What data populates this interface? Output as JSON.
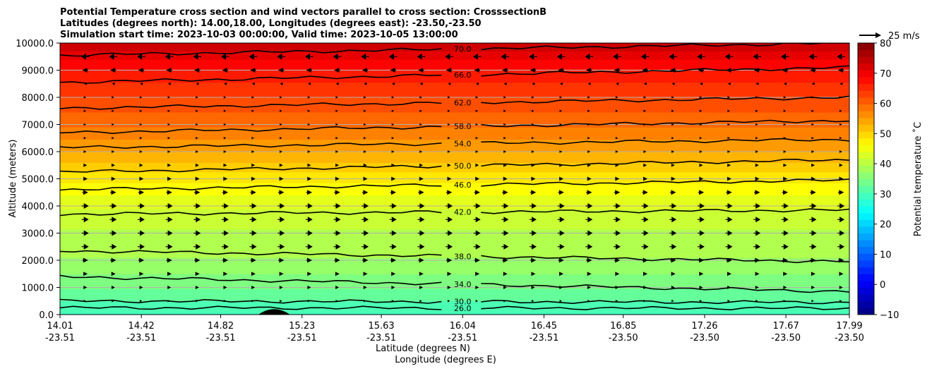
{
  "chart_data": {
    "type": "contourf",
    "title_lines": [
      "Potential Temperature cross section and wind vectors parallel to cross section: CrosssectionB",
      "Latitudes (degrees north): 14.00,18.00, Longitudes (degrees east): -23.50,-23.50",
      "Simulation start time: 2023-10-03 00:00:00, Valid time: 2023-10-05 13:00:00"
    ],
    "xlabel_lat": "Latitude (degrees N)",
    "xlabel_lon": "Longitude (degrees E)",
    "ylabel": "Altitude (meters)",
    "ylim": [
      0,
      10000
    ],
    "y_ticks": [
      {
        "value": 0,
        "label": "0.0"
      },
      {
        "value": 1000,
        "label": "1000.0"
      },
      {
        "value": 2000,
        "label": "2000.0"
      },
      {
        "value": 3000,
        "label": "3000.0"
      },
      {
        "value": 4000,
        "label": "4000.0"
      },
      {
        "value": 5000,
        "label": "5000.0"
      },
      {
        "value": 6000,
        "label": "6000.0"
      },
      {
        "value": 7000,
        "label": "7000.0"
      },
      {
        "value": 8000,
        "label": "8000.0"
      },
      {
        "value": 9000,
        "label": "9000.0"
      },
      {
        "value": 10000,
        "label": "10000.0"
      }
    ],
    "xlim": [
      14.01,
      17.99
    ],
    "x_ticks": [
      {
        "lat": 14.01,
        "lat_label": "14.01",
        "lon_label": "-23.51"
      },
      {
        "lat": 14.42,
        "lat_label": "14.42",
        "lon_label": "-23.51"
      },
      {
        "lat": 14.82,
        "lat_label": "14.82",
        "lon_label": "-23.51"
      },
      {
        "lat": 15.23,
        "lat_label": "15.23",
        "lon_label": "-23.51"
      },
      {
        "lat": 15.63,
        "lat_label": "15.63",
        "lon_label": "-23.51"
      },
      {
        "lat": 16.04,
        "lat_label": "16.04",
        "lon_label": "-23.51"
      },
      {
        "lat": 16.45,
        "lat_label": "16.45",
        "lon_label": "-23.51"
      },
      {
        "lat": 16.85,
        "lat_label": "16.85",
        "lon_label": "-23.50"
      },
      {
        "lat": 17.26,
        "lat_label": "17.26",
        "lon_label": "-23.50"
      },
      {
        "lat": 17.67,
        "lat_label": "17.67",
        "lon_label": "-23.50"
      },
      {
        "lat": 17.99,
        "lat_label": "17.99",
        "lon_label": "-23.50"
      }
    ],
    "grid": "horizontal",
    "colorbar": {
      "label": "Potential temperature $^\\circ$C",
      "label_display": "Potential temperature ˚C",
      "min": -10,
      "max": 80,
      "ticks": [
        -10,
        0,
        10,
        20,
        30,
        40,
        50,
        60,
        70,
        80
      ],
      "tick_labels": [
        "−10",
        "0",
        "10",
        "20",
        "30",
        "40",
        "50",
        "60",
        "70",
        "80"
      ],
      "colormap": "jet",
      "placement": "right"
    },
    "field_profile": [
      {
        "altitude": 0,
        "theta": 29
      },
      {
        "altitude": 1000,
        "theta": 34
      },
      {
        "altitude": 2000,
        "theta": 38
      },
      {
        "altitude": 3000,
        "theta": 40
      },
      {
        "altitude": 4000,
        "theta": 43
      },
      {
        "altitude": 5000,
        "theta": 48
      },
      {
        "altitude": 6000,
        "theta": 54
      },
      {
        "altitude": 7000,
        "theta": 59
      },
      {
        "altitude": 8000,
        "theta": 63
      },
      {
        "altitude": 9000,
        "theta": 67
      },
      {
        "altitude": 10000,
        "theta": 74
      }
    ],
    "contours": [
      {
        "level": 26,
        "label": "26.0",
        "altitude_left": 250,
        "altitude_right": 230,
        "label_lat": 16.04
      },
      {
        "level": 30,
        "label": "30.0",
        "altitude_left": 500,
        "altitude_right": 450,
        "label_lat": 16.04
      },
      {
        "level": 34,
        "label": "34.0",
        "altitude_left": 1400,
        "altitude_right": 850,
        "label_lat": 16.04
      },
      {
        "level": 38,
        "label": "38.0",
        "altitude_left": 2350,
        "altitude_right": 1950,
        "label_lat": 16.04
      },
      {
        "level": 42,
        "label": "42.0",
        "altitude_left": 3700,
        "altitude_right": 3850,
        "label_lat": 16.04
      },
      {
        "level": 46,
        "label": "46.0",
        "altitude_left": 4600,
        "altitude_right": 4950,
        "label_lat": 16.04
      },
      {
        "level": 50,
        "label": "50.0",
        "altitude_left": 5250,
        "altitude_right": 5700,
        "label_lat": 16.04
      },
      {
        "level": 54,
        "label": "54.0",
        "altitude_left": 6150,
        "altitude_right": 6450,
        "label_lat": 16.04
      },
      {
        "level": 58,
        "label": "58.0",
        "altitude_left": 6700,
        "altitude_right": 7150,
        "label_lat": 16.04
      },
      {
        "level": 62,
        "label": "62.0",
        "altitude_left": 7600,
        "altitude_right": 8000,
        "label_lat": 16.04
      },
      {
        "level": 66,
        "label": "66.0",
        "altitude_left": 8550,
        "altitude_right": 9100,
        "label_lat": 16.04
      },
      {
        "level": 70,
        "label": "70.0",
        "altitude_left": 9550,
        "altitude_right": 10000,
        "label_lat": 16.04
      }
    ],
    "terrain": {
      "lat_start": 15.01,
      "lat_peak": 15.09,
      "lat_end": 15.17,
      "peak_altitude": 200
    },
    "wind_vector_levels": [
      {
        "altitude": 500,
        "u": 0.5
      },
      {
        "altitude": 1000,
        "u": 2
      },
      {
        "altitude": 1500,
        "u": 3
      },
      {
        "altitude": 2000,
        "u": 4
      },
      {
        "altitude": 2500,
        "u": 5
      },
      {
        "altitude": 3000,
        "u": 5
      },
      {
        "altitude": 3500,
        "u": 5
      },
      {
        "altitude": 4000,
        "u": 5
      },
      {
        "altitude": 4500,
        "u": 4
      },
      {
        "altitude": 5000,
        "u": 3
      },
      {
        "altitude": 5500,
        "u": 2
      },
      {
        "altitude": 6000,
        "u": 1
      },
      {
        "altitude": 6500,
        "u": 0.5
      },
      {
        "altitude": 7000,
        "u": 0.5
      },
      {
        "altitude": 7500,
        "u": 0.5
      },
      {
        "altitude": 8000,
        "u": 0.5
      },
      {
        "altitude": 8500,
        "u": -1
      },
      {
        "altitude": 9000,
        "u": -4
      },
      {
        "altitude": 9500,
        "u": -6
      }
    ],
    "wind_key": {
      "label": "25 m/s",
      "speed": 25
    }
  }
}
